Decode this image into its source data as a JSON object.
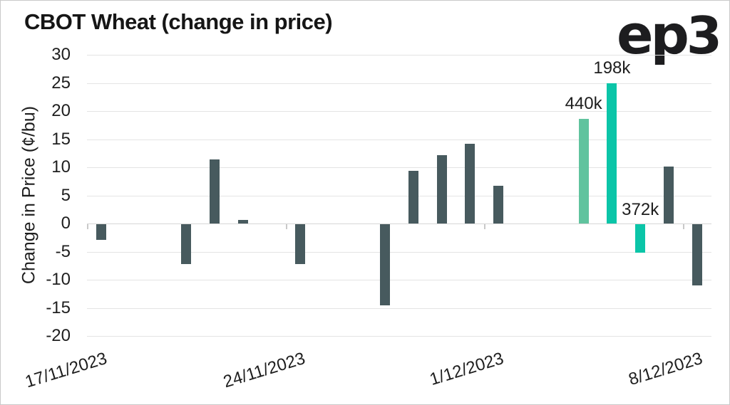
{
  "title": "CBOT Wheat (change in price)",
  "brand": {
    "ep": "ep",
    "three": "3"
  },
  "chart_data": {
    "type": "bar",
    "title": "CBOT Wheat (change in price)",
    "xlabel": "",
    "ylabel": "Change in Price (¢/bu)",
    "ylim": [
      -20,
      30
    ],
    "ytick_step": 5,
    "grid": true,
    "legend": false,
    "x_axis": {
      "type": "date",
      "tick_labels": [
        "17/11/2023",
        "24/11/2023",
        "1/12/2023",
        "8/12/2023"
      ]
    },
    "colors": {
      "default": "#475A5E",
      "teal": "#0BC5A8",
      "light_green": "#60C39E"
    },
    "bars": [
      {
        "date": "17/11/2023",
        "value": -2.7
      },
      {
        "date": "20/11/2023",
        "value": -7.1
      },
      {
        "date": "21/11/2023",
        "value": 11.4
      },
      {
        "date": "22/11/2023",
        "value": 0.7
      },
      {
        "date": "24/11/2023",
        "value": -7.0
      },
      {
        "date": "27/11/2023",
        "value": -14.4
      },
      {
        "date": "28/11/2023",
        "value": 9.4
      },
      {
        "date": "29/11/2023",
        "value": 12.2
      },
      {
        "date": "30/11/2023",
        "value": 14.2
      },
      {
        "date": "1/12/2023",
        "value": 6.7
      },
      {
        "date": "4/12/2023",
        "value": 18.6,
        "label": "440k",
        "color": "light_green"
      },
      {
        "date": "5/12/2023",
        "value": 25.0,
        "label": "198k",
        "color": "teal"
      },
      {
        "date": "6/12/2023",
        "value": -5.0,
        "label": "372k",
        "color": "teal"
      },
      {
        "date": "7/12/2023",
        "value": 10.1
      },
      {
        "date": "8/12/2023",
        "value": -10.9
      }
    ]
  }
}
